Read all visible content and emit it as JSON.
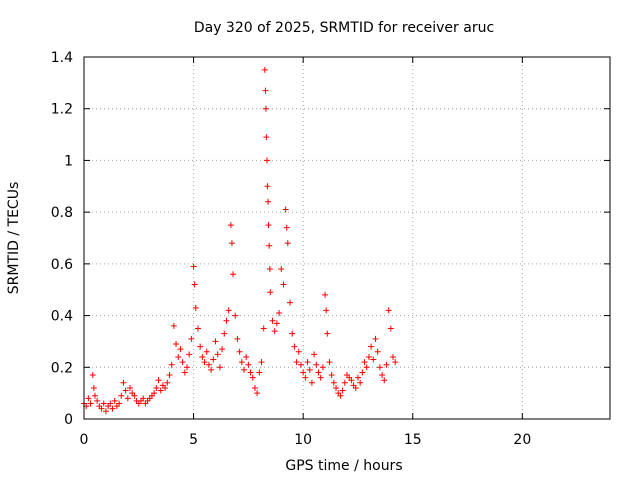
{
  "chart_data": {
    "type": "scatter",
    "title": "Day 320 of 2025, SRMTID for receiver aruc",
    "xlabel": "GPS time / hours",
    "ylabel": "SRMTID / TECUs",
    "xlim": [
      0,
      24
    ],
    "ylim": [
      0,
      1.4
    ],
    "xticks": [
      0,
      5,
      10,
      15,
      20
    ],
    "yticks": [
      0,
      0.2,
      0.4,
      0.6,
      0.8,
      1,
      1.2,
      1.4
    ],
    "xtick_labels": [
      "0",
      "5",
      "10",
      "15",
      "20"
    ],
    "ytick_labels": [
      "0",
      "0.2",
      "0.4",
      "0.6",
      "0.8",
      "1",
      "1.2",
      "1.4"
    ],
    "grid": true,
    "marker": "+",
    "marker_color": "#ff0000",
    "series": [
      {
        "name": "SRMTID",
        "points": [
          [
            0.0,
            0.06
          ],
          [
            0.1,
            0.05
          ],
          [
            0.2,
            0.08
          ],
          [
            0.3,
            0.06
          ],
          [
            0.4,
            0.17
          ],
          [
            0.45,
            0.12
          ],
          [
            0.5,
            0.09
          ],
          [
            0.6,
            0.07
          ],
          [
            0.7,
            0.05
          ],
          [
            0.8,
            0.04
          ],
          [
            0.9,
            0.06
          ],
          [
            1.0,
            0.03
          ],
          [
            1.1,
            0.05
          ],
          [
            1.2,
            0.06
          ],
          [
            1.3,
            0.04
          ],
          [
            1.4,
            0.07
          ],
          [
            1.5,
            0.05
          ],
          [
            1.6,
            0.06
          ],
          [
            1.7,
            0.09
          ],
          [
            1.8,
            0.14
          ],
          [
            1.9,
            0.11
          ],
          [
            2.0,
            0.08
          ],
          [
            2.1,
            0.12
          ],
          [
            2.2,
            0.1
          ],
          [
            2.3,
            0.09
          ],
          [
            2.4,
            0.07
          ],
          [
            2.5,
            0.06
          ],
          [
            2.6,
            0.07
          ],
          [
            2.7,
            0.08
          ],
          [
            2.8,
            0.06
          ],
          [
            2.9,
            0.07
          ],
          [
            3.0,
            0.08
          ],
          [
            3.1,
            0.09
          ],
          [
            3.2,
            0.1
          ],
          [
            3.3,
            0.12
          ],
          [
            3.4,
            0.15
          ],
          [
            3.5,
            0.11
          ],
          [
            3.6,
            0.13
          ],
          [
            3.7,
            0.12
          ],
          [
            3.8,
            0.14
          ],
          [
            3.9,
            0.17
          ],
          [
            4.0,
            0.21
          ],
          [
            4.1,
            0.36
          ],
          [
            4.2,
            0.29
          ],
          [
            4.3,
            0.24
          ],
          [
            4.4,
            0.27
          ],
          [
            4.5,
            0.22
          ],
          [
            4.6,
            0.18
          ],
          [
            4.7,
            0.2
          ],
          [
            4.8,
            0.25
          ],
          [
            4.9,
            0.31
          ],
          [
            5.0,
            0.59
          ],
          [
            5.05,
            0.52
          ],
          [
            5.1,
            0.43
          ],
          [
            5.2,
            0.35
          ],
          [
            5.3,
            0.28
          ],
          [
            5.4,
            0.24
          ],
          [
            5.5,
            0.22
          ],
          [
            5.6,
            0.26
          ],
          [
            5.7,
            0.21
          ],
          [
            5.8,
            0.19
          ],
          [
            5.9,
            0.23
          ],
          [
            6.0,
            0.3
          ],
          [
            6.1,
            0.25
          ],
          [
            6.2,
            0.2
          ],
          [
            6.3,
            0.27
          ],
          [
            6.4,
            0.33
          ],
          [
            6.5,
            0.38
          ],
          [
            6.6,
            0.42
          ],
          [
            6.7,
            0.75
          ],
          [
            6.75,
            0.68
          ],
          [
            6.8,
            0.56
          ],
          [
            6.9,
            0.4
          ],
          [
            7.0,
            0.31
          ],
          [
            7.1,
            0.26
          ],
          [
            7.2,
            0.22
          ],
          [
            7.3,
            0.19
          ],
          [
            7.4,
            0.24
          ],
          [
            7.5,
            0.21
          ],
          [
            7.6,
            0.18
          ],
          [
            7.7,
            0.16
          ],
          [
            7.8,
            0.12
          ],
          [
            7.9,
            0.1
          ],
          [
            8.0,
            0.18
          ],
          [
            8.1,
            0.22
          ],
          [
            8.2,
            0.35
          ],
          [
            8.25,
            1.35
          ],
          [
            8.28,
            1.27
          ],
          [
            8.3,
            1.2
          ],
          [
            8.32,
            1.09
          ],
          [
            8.35,
            1.0
          ],
          [
            8.37,
            0.9
          ],
          [
            8.4,
            0.84
          ],
          [
            8.42,
            0.75
          ],
          [
            8.45,
            0.67
          ],
          [
            8.48,
            0.58
          ],
          [
            8.5,
            0.49
          ],
          [
            8.6,
            0.38
          ],
          [
            8.7,
            0.34
          ],
          [
            8.8,
            0.37
          ],
          [
            8.9,
            0.41
          ],
          [
            9.0,
            0.58
          ],
          [
            9.1,
            0.52
          ],
          [
            9.2,
            0.81
          ],
          [
            9.25,
            0.74
          ],
          [
            9.3,
            0.68
          ],
          [
            9.4,
            0.45
          ],
          [
            9.5,
            0.33
          ],
          [
            9.6,
            0.28
          ],
          [
            9.7,
            0.22
          ],
          [
            9.8,
            0.26
          ],
          [
            9.9,
            0.21
          ],
          [
            10.0,
            0.18
          ],
          [
            10.1,
            0.16
          ],
          [
            10.2,
            0.22
          ],
          [
            10.3,
            0.19
          ],
          [
            10.4,
            0.14
          ],
          [
            10.5,
            0.25
          ],
          [
            10.6,
            0.21
          ],
          [
            10.7,
            0.18
          ],
          [
            10.8,
            0.16
          ],
          [
            10.9,
            0.2
          ],
          [
            11.0,
            0.48
          ],
          [
            11.05,
            0.42
          ],
          [
            11.1,
            0.33
          ],
          [
            11.2,
            0.22
          ],
          [
            11.3,
            0.17
          ],
          [
            11.4,
            0.14
          ],
          [
            11.5,
            0.12
          ],
          [
            11.6,
            0.1
          ],
          [
            11.7,
            0.09
          ],
          [
            11.8,
            0.11
          ],
          [
            11.9,
            0.14
          ],
          [
            12.0,
            0.17
          ],
          [
            12.1,
            0.16
          ],
          [
            12.2,
            0.15
          ],
          [
            12.3,
            0.13
          ],
          [
            12.4,
            0.12
          ],
          [
            12.5,
            0.16
          ],
          [
            12.6,
            0.14
          ],
          [
            12.7,
            0.18
          ],
          [
            12.8,
            0.22
          ],
          [
            12.9,
            0.2
          ],
          [
            13.0,
            0.24
          ],
          [
            13.1,
            0.28
          ],
          [
            13.2,
            0.23
          ],
          [
            13.3,
            0.31
          ],
          [
            13.4,
            0.26
          ],
          [
            13.5,
            0.2
          ],
          [
            13.6,
            0.17
          ],
          [
            13.7,
            0.15
          ],
          [
            13.8,
            0.21
          ],
          [
            13.9,
            0.42
          ],
          [
            14.0,
            0.35
          ],
          [
            14.1,
            0.24
          ],
          [
            14.2,
            0.22
          ]
        ]
      }
    ]
  }
}
